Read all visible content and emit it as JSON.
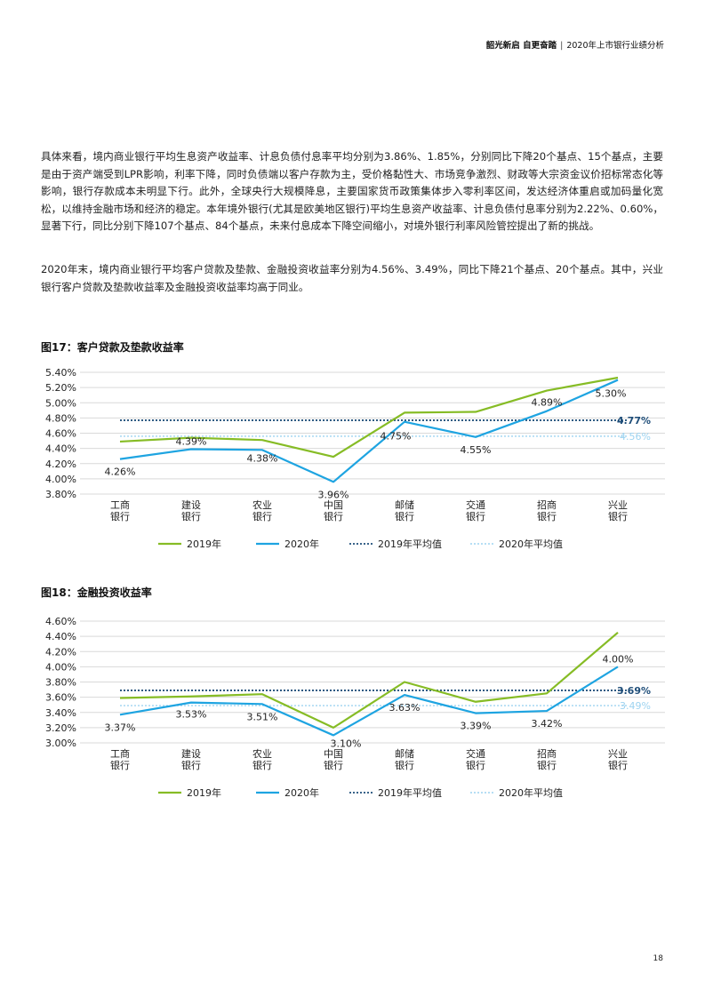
{
  "header": {
    "left": "韶光新启 自更奋踏",
    "separator": "|",
    "right": "2020年上市银行业绩分析"
  },
  "paragraphs": [
    "具体来看，境内商业银行平均生息资产收益率、计息负债付息率平均分别为3.86%、1.85%，分别同比下降20个基点、15个基点，主要是由于资产端受到LPR影响，利率下降，同时负债端以客户存款为主，受价格黏性大、市场竞争激烈、财政等大宗资金议价招标常态化等影响，银行存款成本未明显下行。此外，全球央行大规模降息，主要国家货币政策集体步入零利率区间，发达经济体重启或加码量化宽松，以维持金融市场和经济的稳定。本年境外银行(尤其是欧美地区银行)平均生息资产收益率、计息负债付息率分别为2.22%、0.60%，显著下行，同比分别下降107个基点、84个基点，未来付息成本下降空间缩小，对境外银行利率风险管控提出了新的挑战。",
    "2020年末，境内商业银行平均客户贷款及垫款、金融投资收益率分别为4.56%、3.49%，同比下降21个基点、20个基点。其中，兴业银行客户贷款及垫款收益率及金融投资收益率均高于同业。"
  ],
  "colors": {
    "series_2019": "#86bc25",
    "series_2020": "#1ea4e1",
    "avg_2019": "#1f4e79",
    "avg_2020": "#9dd3f0",
    "grid": "#d9d9d9"
  },
  "chart_data": [
    {
      "type": "line",
      "title": "图17：客户贷款及垫款收益率",
      "categories": [
        "工商\n银行",
        "建设\n银行",
        "农业\n银行",
        "中国\n银行",
        "邮储\n银行",
        "交通\n银行",
        "招商\n银行",
        "兴业\n银行"
      ],
      "ylim": [
        3.8,
        5.4
      ],
      "yticks": [
        3.8,
        4.0,
        4.2,
        4.4,
        4.6,
        4.8,
        5.0,
        5.2,
        5.4
      ],
      "ytick_labels": [
        "3.80%",
        "4.00%",
        "4.20%",
        "4.40%",
        "4.60%",
        "4.80%",
        "5.00%",
        "5.20%",
        "5.40%"
      ],
      "grid": true,
      "legend_position": "bottom",
      "series": [
        {
          "name": "2019年",
          "values": [
            4.49,
            4.54,
            4.51,
            4.29,
            4.87,
            4.88,
            5.16,
            5.33
          ],
          "style": "solid"
        },
        {
          "name": "2020年",
          "values": [
            4.26,
            4.39,
            4.38,
            3.96,
            4.75,
            4.55,
            4.89,
            5.3
          ],
          "style": "solid",
          "data_labels": [
            "4.26%",
            "4.39%",
            "4.38%",
            "3.96%",
            "4.75%",
            "4.55%",
            "4.89%",
            "5.30%"
          ]
        }
      ],
      "averages": [
        {
          "name": "2019年平均值",
          "value": 4.77,
          "label": "4.77%",
          "style": "dotted"
        },
        {
          "name": "2020年平均值",
          "value": 4.56,
          "label": "4.56%",
          "style": "dotted"
        }
      ]
    },
    {
      "type": "line",
      "title": "图18：金融投资收益率",
      "categories": [
        "工商\n银行",
        "建设\n银行",
        "农业\n银行",
        "中国\n银行",
        "邮储\n银行",
        "交通\n银行",
        "招商\n银行",
        "兴业\n银行"
      ],
      "ylim": [
        3.0,
        4.6
      ],
      "yticks": [
        3.0,
        3.2,
        3.4,
        3.6,
        3.8,
        4.0,
        4.2,
        4.4,
        4.6
      ],
      "ytick_labels": [
        "3.00%",
        "3.20%",
        "3.40%",
        "3.60%",
        "3.80%",
        "4.00%",
        "4.20%",
        "4.40%",
        "4.60%"
      ],
      "grid": true,
      "legend_position": "bottom",
      "series": [
        {
          "name": "2019年",
          "values": [
            3.59,
            3.61,
            3.64,
            3.2,
            3.8,
            3.54,
            3.65,
            4.45
          ],
          "style": "solid"
        },
        {
          "name": "2020年",
          "values": [
            3.37,
            3.53,
            3.51,
            3.1,
            3.63,
            3.39,
            3.42,
            4.0
          ],
          "style": "solid",
          "data_labels": [
            "3.37%",
            "3.53%",
            "3.51%",
            "3.10%",
            "3.63%",
            "3.39%",
            "3.42%",
            "4.00%"
          ]
        }
      ],
      "averages": [
        {
          "name": "2019年平均值",
          "value": 3.69,
          "label": "3.69%",
          "style": "dotted"
        },
        {
          "name": "2020年平均值",
          "value": 3.49,
          "label": "3.49%",
          "style": "dotted"
        }
      ]
    }
  ],
  "page_number": "18"
}
